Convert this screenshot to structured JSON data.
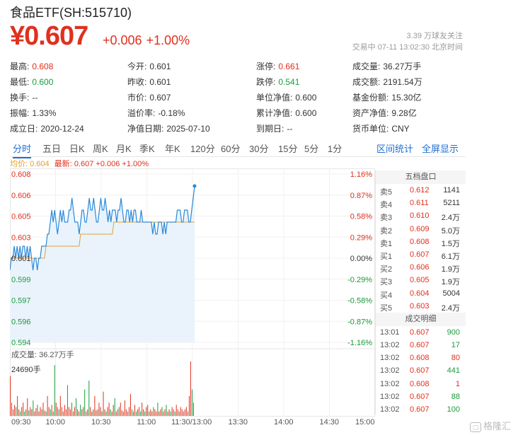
{
  "header": {
    "title": "食品ETF(SH:515710)",
    "price": "¥0.607",
    "change": "+0.006",
    "change_pct": "+1.00%",
    "followers": "3.39 万球友关注",
    "trade_time": "交易中 07-11 13:02:30 北京时间"
  },
  "stats": {
    "row1": [
      {
        "label": "最高:",
        "value": "0.608",
        "color": "red"
      },
      {
        "label": "今开:",
        "value": "0.601",
        "color": ""
      },
      {
        "label": "涨停:",
        "value": "0.661",
        "color": "red"
      },
      {
        "label": "成交量:",
        "value": "36.27万手",
        "color": ""
      }
    ],
    "row2": [
      {
        "label": "最低:",
        "value": "0.600",
        "color": "green"
      },
      {
        "label": "昨收:",
        "value": "0.601",
        "color": ""
      },
      {
        "label": "跌停:",
        "value": "0.541",
        "color": "green"
      },
      {
        "label": "成交额:",
        "value": "2191.54万",
        "color": ""
      }
    ],
    "row3": [
      {
        "label": "换手:",
        "value": "--",
        "color": ""
      },
      {
        "label": "市价:",
        "value": "0.607",
        "color": ""
      },
      {
        "label": "单位净值:",
        "value": "0.600",
        "color": ""
      },
      {
        "label": "基金份额:",
        "value": "15.30亿",
        "color": ""
      }
    ],
    "row4": [
      {
        "label": "振幅:",
        "value": "1.33%",
        "color": ""
      },
      {
        "label": "溢价率:",
        "value": "-0.18%",
        "color": ""
      },
      {
        "label": "累计净值:",
        "value": "0.600",
        "color": ""
      },
      {
        "label": "资产净值:",
        "value": "9.28亿",
        "color": ""
      }
    ],
    "row5": [
      {
        "label": "成立日:",
        "value": "2020-12-24",
        "color": ""
      },
      {
        "label": "净值日期:",
        "value": "2025-07-10",
        "color": ""
      },
      {
        "label": "到期日:",
        "value": "--",
        "color": ""
      },
      {
        "label": "货币单位:",
        "value": "CNY",
        "color": ""
      }
    ]
  },
  "tabs": [
    "分时",
    "五日",
    "日K",
    "周K",
    "月K",
    "季K",
    "年K",
    "120分",
    "60分",
    "30分",
    "15分",
    "5分",
    "1分"
  ],
  "tab_links": [
    "区间统计",
    "全屏显示"
  ],
  "legend": {
    "avg": "均价: 0.604",
    "latest": "最新: 0.607 +0.006 +1.00%"
  },
  "volume": {
    "label": "成交量: 36.27万手",
    "max": "24690手"
  },
  "order_book": {
    "title": "五档盘口",
    "rows": [
      {
        "side": "卖5",
        "price": "0.612",
        "vol": "1141"
      },
      {
        "side": "卖4",
        "price": "0.611",
        "vol": "5211"
      },
      {
        "side": "卖3",
        "price": "0.610",
        "vol": "2.4万"
      },
      {
        "side": "卖2",
        "price": "0.609",
        "vol": "5.0万"
      },
      {
        "side": "卖1",
        "price": "0.608",
        "vol": "1.5万"
      },
      {
        "side": "买1",
        "price": "0.607",
        "vol": "6.1万"
      },
      {
        "side": "买2",
        "price": "0.606",
        "vol": "1.9万"
      },
      {
        "side": "买3",
        "price": "0.605",
        "vol": "1.9万"
      },
      {
        "side": "买4",
        "price": "0.604",
        "vol": "5004"
      },
      {
        "side": "买5",
        "price": "0.603",
        "vol": "2.4万"
      }
    ]
  },
  "trades": {
    "title": "成交明细",
    "rows": [
      {
        "time": "13:01",
        "price": "0.607",
        "vol": "900",
        "dir": "green"
      },
      {
        "time": "13:02",
        "price": "0.607",
        "vol": "17",
        "dir": "green"
      },
      {
        "time": "13:02",
        "price": "0.608",
        "vol": "80",
        "dir": "red"
      },
      {
        "time": "13:02",
        "price": "0.607",
        "vol": "441",
        "dir": "green"
      },
      {
        "time": "13:02",
        "price": "0.608",
        "vol": "1",
        "dir": "red"
      },
      {
        "time": "13:02",
        "price": "0.607",
        "vol": "88",
        "dir": "green"
      },
      {
        "time": "13:02",
        "price": "0.607",
        "vol": "100",
        "dir": "green"
      }
    ]
  },
  "watermark": "格隆汇",
  "colors": {
    "up": "#e0301e",
    "down": "#1a9b3c",
    "line": "#2b8ad8",
    "avg": "#e0a030",
    "accent": "#1f6fd1"
  },
  "chart_data": {
    "type": "line",
    "y_left_ticks": [
      "0.608",
      "0.606",
      "0.605",
      "0.603",
      "0.601",
      "0.599",
      "0.597",
      "0.596",
      "0.594"
    ],
    "y_right_ticks": [
      "1.16%",
      "0.87%",
      "0.58%",
      "0.29%",
      "0.00%",
      "-0.29%",
      "-0.58%",
      "-0.87%",
      "-1.16%"
    ],
    "x_ticks": [
      "09:30",
      "10:00",
      "10:30",
      "11:00",
      "11:30/13:00",
      "13:30",
      "14:00",
      "14:30",
      "15:00"
    ],
    "ylim": [
      0.594,
      0.608
    ],
    "prev_close": 0.601,
    "series": [
      {
        "values": [
          0.6,
          0.601,
          0.601,
          0.602,
          0.601,
          0.602,
          0.601,
          0.602,
          0.601,
          0.602,
          0.602,
          0.601,
          0.602,
          0.601,
          0.602,
          0.601,
          0.6,
          0.601,
          0.601,
          0.6,
          0.601,
          0.601,
          0.602,
          0.602,
          0.602,
          0.602,
          0.603,
          0.603,
          0.604,
          0.605,
          0.604,
          0.605,
          0.604,
          0.603,
          0.604,
          0.605,
          0.604,
          0.605,
          0.604,
          0.604,
          0.604,
          0.605,
          0.605,
          0.606,
          0.605,
          0.604,
          0.604,
          0.604,
          0.603,
          0.604,
          0.605,
          0.605,
          0.604,
          0.604,
          0.605,
          0.606,
          0.605,
          0.605,
          0.606,
          0.605,
          0.604,
          0.604,
          0.605,
          0.606,
          0.605,
          0.605,
          0.606,
          0.605,
          0.604,
          0.605,
          0.604,
          0.605,
          0.605,
          0.605,
          0.604,
          0.605,
          0.605,
          0.606,
          0.605,
          0.604,
          0.604,
          0.605,
          0.605,
          0.604,
          0.605,
          0.604,
          0.605,
          0.605,
          0.604,
          0.604,
          0.604,
          0.605,
          0.604,
          0.604,
          0.604,
          0.604,
          0.604,
          0.604,
          0.604,
          0.603,
          0.604,
          0.603,
          0.603,
          0.604,
          0.604,
          0.604,
          0.603,
          0.604,
          0.603,
          0.604,
          0.604,
          0.604,
          0.604,
          0.604,
          0.604,
          0.604,
          0.605,
          0.605,
          0.605,
          0.604,
          0.604,
          0.605,
          0.605,
          0.605,
          0.604,
          0.604,
          0.605,
          0.606,
          0.607
        ]
      },
      {
        "values": [
          0.601,
          0.601,
          0.601,
          0.601,
          0.601,
          0.601,
          0.601,
          0.601,
          0.601,
          0.601,
          0.601,
          0.601,
          0.601,
          0.601,
          0.601,
          0.601,
          0.601,
          0.601,
          0.601,
          0.601,
          0.601,
          0.601,
          0.601,
          0.601,
          0.601,
          0.602,
          0.602,
          0.602,
          0.602,
          0.602,
          0.602,
          0.602,
          0.602,
          0.602,
          0.602,
          0.602,
          0.602,
          0.602,
          0.602,
          0.602,
          0.602,
          0.602,
          0.602,
          0.602,
          0.602,
          0.602,
          0.602,
          0.602,
          0.602,
          0.603,
          0.603,
          0.603,
          0.603,
          0.603,
          0.603,
          0.603,
          0.603,
          0.603,
          0.603,
          0.603,
          0.603,
          0.603,
          0.603,
          0.603,
          0.603,
          0.603,
          0.603,
          0.603,
          0.603,
          0.603,
          0.603,
          0.603,
          0.604,
          0.604,
          0.604,
          0.604,
          0.604,
          0.604,
          0.604,
          0.604,
          0.604,
          0.604,
          0.604,
          0.604,
          0.604,
          0.604,
          0.604,
          0.604,
          0.604,
          0.604,
          0.604,
          0.604,
          0.604,
          0.604,
          0.604,
          0.604,
          0.604,
          0.604,
          0.604,
          0.604,
          0.604,
          0.604,
          0.604,
          0.604,
          0.604,
          0.604,
          0.604,
          0.604,
          0.604,
          0.604,
          0.604,
          0.604,
          0.604,
          0.604,
          0.604,
          0.604,
          0.604,
          0.604,
          0.604,
          0.604,
          0.604,
          0.604,
          0.604,
          0.604,
          0.604,
          0.604,
          0.604,
          0.604,
          0.604
        ]
      }
    ],
    "volume_max": 24690,
    "volume_values": [
      18000,
      6000,
      3000,
      5000,
      4000,
      9000,
      3000,
      2000,
      4000,
      6000,
      2000,
      3000,
      8000,
      2500,
      4000,
      3000,
      7000,
      2000,
      3500,
      5000,
      2000,
      4000,
      3000,
      6000,
      2500,
      2000,
      9000,
      4000,
      3000,
      5000,
      2000,
      23000,
      6000,
      4000,
      3000,
      9000,
      4000,
      2000,
      5000,
      3000,
      14000,
      4000,
      3000,
      6000,
      2000,
      4000,
      8000,
      3000,
      2000,
      5000,
      3000,
      4000,
      12000,
      2000,
      3000,
      16000,
      4000,
      2000,
      3000,
      9000,
      2500,
      3000,
      6000,
      4000,
      2000,
      11000,
      3000,
      2000,
      4000,
      6000,
      3000,
      2000,
      5000,
      8000,
      2000,
      3000,
      4000,
      6000,
      2500,
      2000,
      7000,
      3000,
      2000,
      4000,
      10000,
      3000,
      2000,
      5000,
      2000,
      3000,
      4000,
      2000,
      6000,
      3000,
      2000,
      4000,
      5000,
      2000,
      3000,
      2000,
      4000,
      3000,
      2000,
      6000,
      2000,
      3000,
      4000,
      2000,
      3000,
      5000,
      2000,
      3000,
      2000,
      4000,
      3000,
      2000,
      5000,
      3000,
      2000,
      4000,
      3000,
      2000,
      3000,
      4000,
      2000,
      9000,
      24690,
      12000,
      6000
    ]
  }
}
